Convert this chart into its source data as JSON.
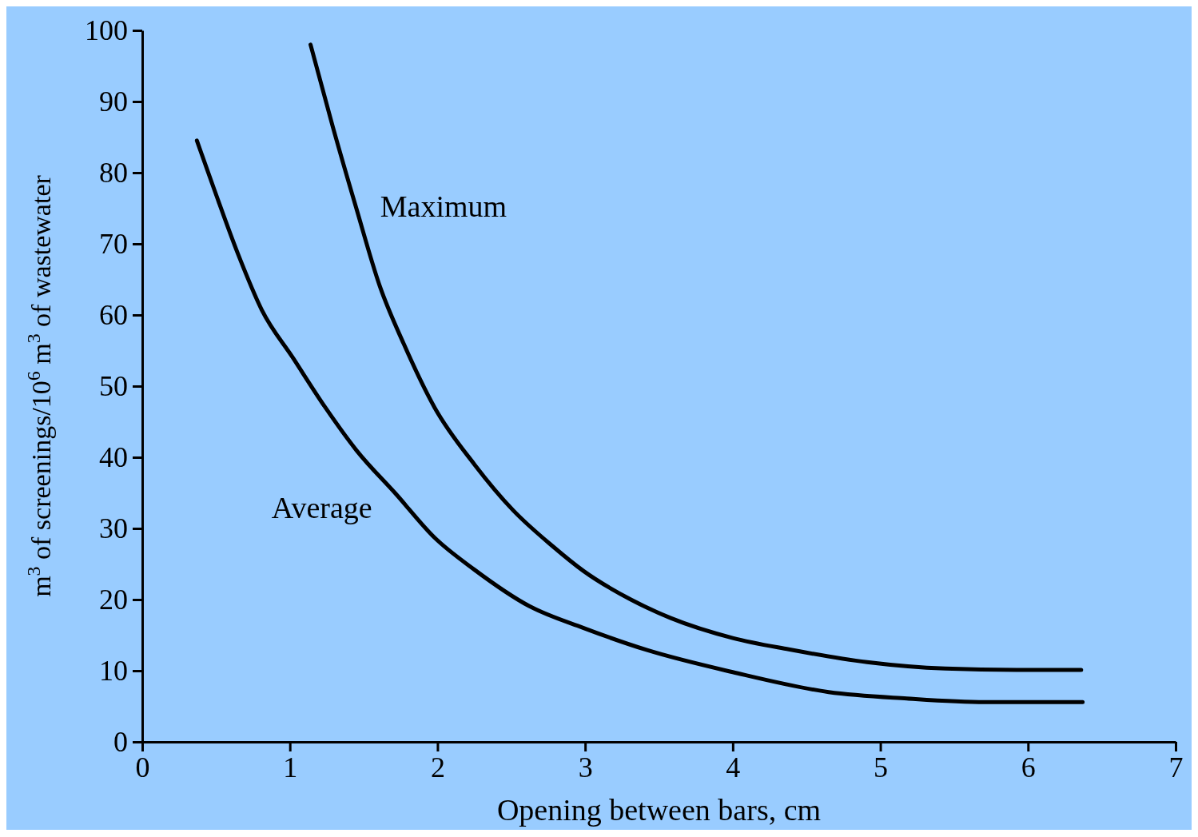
{
  "chart_data": {
    "type": "line",
    "xlabel": "Opening between bars, cm",
    "ylabel": "m$^{3}$ of screenings/10$^{6}$ m$^{3}$ of wastewater",
    "xlim": [
      0,
      7
    ],
    "ylim": [
      0,
      100
    ],
    "xticks": [
      0,
      1,
      2,
      3,
      4,
      5,
      6,
      7
    ],
    "yticks": [
      0,
      10,
      20,
      30,
      40,
      50,
      60,
      70,
      80,
      90,
      100
    ],
    "grid": false,
    "legend": false,
    "marker": "none",
    "line_style": "solid",
    "series": [
      {
        "name": "Maximum",
        "color": "#000000",
        "x": [
          1.14,
          1.29,
          1.45,
          1.61,
          1.77,
          1.98,
          2.25,
          2.51,
          2.78,
          2.99,
          3.31,
          3.58,
          4.0,
          4.38,
          4.91,
          5.44,
          5.98,
          6.36
        ],
        "values": [
          98,
          86.5,
          75,
          64,
          56,
          47,
          39,
          32.6,
          27.5,
          24,
          20,
          17.4,
          14.6,
          13,
          11.2,
          10.3,
          10.1,
          10.1
        ]
      },
      {
        "name": "Average",
        "color": "#000000",
        "x": [
          0.37,
          0.49,
          0.65,
          0.81,
          1.02,
          1.24,
          1.45,
          1.72,
          1.98,
          2.25,
          2.62,
          2.99,
          3.42,
          4.0,
          4.65,
          5.18,
          5.71,
          6.37
        ],
        "values": [
          84.5,
          77.5,
          68.5,
          60.7,
          54,
          47,
          41,
          34.8,
          28.7,
          24.2,
          19.1,
          16,
          12.9,
          9.8,
          7,
          6.1,
          5.6,
          5.6
        ]
      }
    ]
  }
}
